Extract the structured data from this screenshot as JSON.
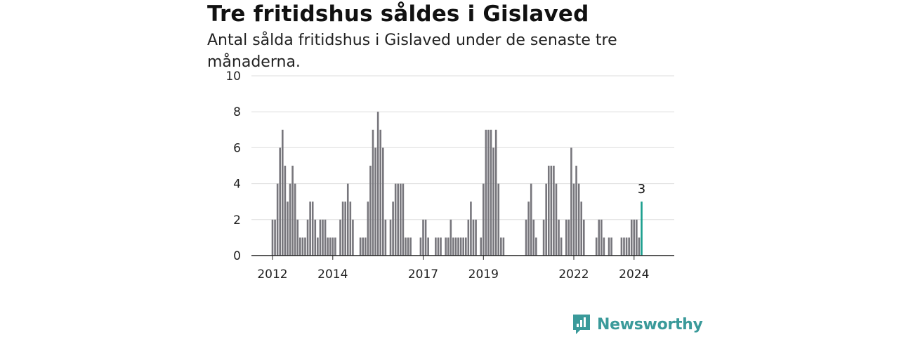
{
  "title": "Tre fritidshus såldes i Gislaved",
  "subtitle": "Antal sålda fritidshus i Gislaved under de senaste tre månaderna.",
  "brand": "Newsworthy",
  "colors": {
    "bar": "#77767c",
    "highlight": "#1a9e8e",
    "grid": "#dddddd",
    "axis": "#222222",
    "brand": "#3a9a9a"
  },
  "chart_data": {
    "type": "bar",
    "title": "Tre fritidshus såldes i Gislaved",
    "subtitle": "Antal sålda fritidshus i Gislaved under de senaste tre månaderna.",
    "xlabel": "",
    "ylabel": "",
    "ylim": [
      0,
      10
    ],
    "yticks": [
      0,
      2,
      4,
      6,
      8,
      10
    ],
    "xticks": [
      "2012",
      "2014",
      "2017",
      "2019",
      "2022",
      "2024"
    ],
    "x_start": "2012-01",
    "grid": true,
    "annotation": "3",
    "values": [
      2,
      2,
      4,
      6,
      7,
      5,
      3,
      4,
      5,
      4,
      2,
      1,
      1,
      1,
      2,
      3,
      3,
      2,
      1,
      2,
      2,
      2,
      1,
      1,
      1,
      1,
      0,
      2,
      3,
      3,
      4,
      3,
      2,
      0,
      0,
      1,
      1,
      1,
      3,
      5,
      7,
      6,
      8,
      7,
      6,
      2,
      0,
      2,
      3,
      4,
      4,
      4,
      4,
      1,
      1,
      1,
      0,
      0,
      0,
      1,
      2,
      2,
      1,
      0,
      0,
      1,
      1,
      1,
      0,
      1,
      1,
      2,
      1,
      1,
      1,
      1,
      1,
      1,
      2,
      3,
      2,
      2,
      0,
      1,
      4,
      7,
      7,
      7,
      6,
      7,
      4,
      1,
      1,
      0,
      0,
      0,
      0,
      0,
      0,
      0,
      0,
      2,
      3,
      4,
      2,
      1,
      0,
      0,
      2,
      4,
      5,
      5,
      5,
      4,
      2,
      1,
      0,
      2,
      2,
      6,
      4,
      5,
      4,
      3,
      2,
      0,
      0,
      0,
      0,
      1,
      2,
      2,
      1,
      0,
      1,
      1,
      0,
      0,
      0,
      1,
      1,
      1,
      1,
      2,
      2,
      2,
      1,
      3
    ],
    "highlight_last": true
  }
}
